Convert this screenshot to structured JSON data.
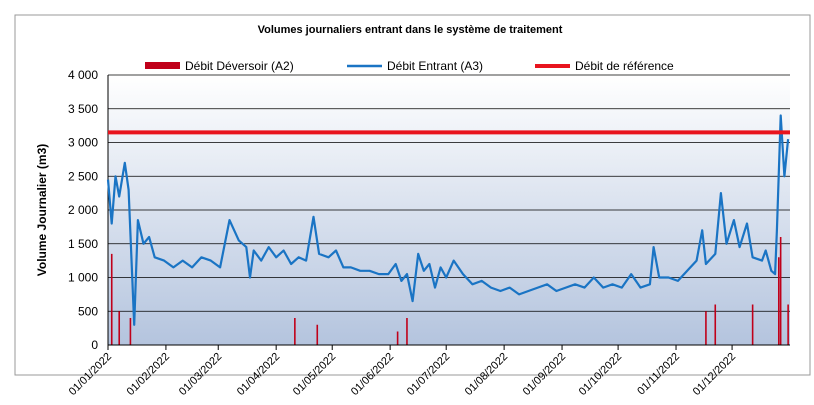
{
  "chart_data": {
    "type": "line",
    "title": "Volumes journaliers entrant dans le système de traitement",
    "y_label": "Volume Journalier (m3)",
    "xlim": [
      "2022-01-01",
      "2023-01-01"
    ],
    "xticks": [
      {
        "value": "2022-01-01",
        "label": "01/01/2022"
      },
      {
        "value": "2022-02-01",
        "label": "01/02/2022"
      },
      {
        "value": "2022-03-01",
        "label": "01/03/2022"
      },
      {
        "value": "2022-04-01",
        "label": "01/04/2022"
      },
      {
        "value": "2022-05-01",
        "label": "01/05/2022"
      },
      {
        "value": "2022-06-01",
        "label": "01/06/2022"
      },
      {
        "value": "2022-07-01",
        "label": "01/07/2022"
      },
      {
        "value": "2022-08-01",
        "label": "01/08/2022"
      },
      {
        "value": "2022-09-01",
        "label": "01/09/2022"
      },
      {
        "value": "2022-10-01",
        "label": "01/10/2022"
      },
      {
        "value": "2022-11-01",
        "label": "01/11/2022"
      },
      {
        "value": "2022-12-01",
        "label": "01/12/2022"
      }
    ],
    "ylim": [
      0,
      4000
    ],
    "yticks": [
      0,
      500,
      {
        "value": 1000,
        "label": "1 000"
      },
      {
        "value": 1500,
        "label": "1 500"
      },
      {
        "value": 2000,
        "label": "2 000"
      },
      {
        "value": 2500,
        "label": "2 500"
      },
      {
        "value": 3000,
        "label": "3 000"
      },
      {
        "value": 3500,
        "label": "3 500"
      },
      {
        "value": 4000,
        "label": "4 000"
      }
    ],
    "grid": true,
    "series": [
      {
        "name": "Débit Déversoir (A2)",
        "kind": "bar",
        "color": "#c0001a",
        "x": [
          "2022-01-03",
          "2022-01-07",
          "2022-01-13",
          "2022-04-11",
          "2022-04-23",
          "2022-06-05",
          "2022-06-10",
          "2022-11-17",
          "2022-11-22",
          "2022-12-12",
          "2022-12-26",
          "2022-12-27",
          "2022-12-31"
        ],
        "values": [
          1350,
          500,
          400,
          400,
          300,
          200,
          400,
          500,
          600,
          600,
          1300,
          1600,
          600
        ]
      },
      {
        "name": "Débit Entrant (A3)",
        "kind": "line",
        "color": "#1a74c4",
        "x": [
          "2022-01-01",
          "2022-01-03",
          "2022-01-05",
          "2022-01-07",
          "2022-01-10",
          "2022-01-12",
          "2022-01-15",
          "2022-01-17",
          "2022-01-20",
          "2022-01-23",
          "2022-01-26",
          "2022-01-31",
          "2022-02-05",
          "2022-02-10",
          "2022-02-15",
          "2022-02-20",
          "2022-02-25",
          "2022-03-02",
          "2022-03-07",
          "2022-03-12",
          "2022-03-16",
          "2022-03-18",
          "2022-03-20",
          "2022-03-24",
          "2022-03-28",
          "2022-04-01",
          "2022-04-05",
          "2022-04-09",
          "2022-04-13",
          "2022-04-17",
          "2022-04-21",
          "2022-04-24",
          "2022-04-29",
          "2022-05-03",
          "2022-05-07",
          "2022-05-11",
          "2022-05-16",
          "2022-05-21",
          "2022-05-26",
          "2022-05-31",
          "2022-06-04",
          "2022-06-07",
          "2022-06-10",
          "2022-06-13",
          "2022-06-16",
          "2022-06-19",
          "2022-06-22",
          "2022-06-25",
          "2022-06-28",
          "2022-07-01",
          "2022-07-05",
          "2022-07-10",
          "2022-07-15",
          "2022-07-20",
          "2022-07-25",
          "2022-07-30",
          "2022-08-04",
          "2022-08-09",
          "2022-08-14",
          "2022-08-19",
          "2022-08-24",
          "2022-08-29",
          "2022-09-03",
          "2022-09-08",
          "2022-09-13",
          "2022-09-18",
          "2022-09-23",
          "2022-09-28",
          "2022-10-03",
          "2022-10-08",
          "2022-10-13",
          "2022-10-18",
          "2022-10-20",
          "2022-10-23",
          "2022-10-28",
          "2022-11-02",
          "2022-11-07",
          "2022-11-12",
          "2022-11-15",
          "2022-11-17",
          "2022-11-22",
          "2022-11-25",
          "2022-11-28",
          "2022-12-02",
          "2022-12-05",
          "2022-12-09",
          "2022-12-12",
          "2022-12-17",
          "2022-12-19",
          "2022-12-22",
          "2022-12-24",
          "2022-12-25",
          "2022-12-27",
          "2022-12-29",
          "2022-12-31"
        ],
        "values": [
          2450,
          1800,
          2500,
          2200,
          2700,
          2300,
          300,
          1850,
          1500,
          1600,
          1300,
          1250,
          1150,
          1250,
          1150,
          1300,
          1250,
          1150,
          1850,
          1550,
          1450,
          1000,
          1400,
          1250,
          1450,
          1300,
          1400,
          1200,
          1300,
          1250,
          1900,
          1350,
          1300,
          1400,
          1150,
          1150,
          1100,
          1100,
          1050,
          1050,
          1200,
          950,
          1050,
          650,
          1350,
          1100,
          1200,
          850,
          1150,
          1000,
          1250,
          1050,
          900,
          950,
          850,
          800,
          850,
          750,
          800,
          850,
          900,
          800,
          850,
          900,
          850,
          1000,
          850,
          900,
          850,
          1050,
          850,
          900,
          1450,
          1000,
          1000,
          950,
          1100,
          1250,
          1700,
          1200,
          1350,
          2250,
          1500,
          1850,
          1450,
          1800,
          1300,
          1250,
          1400,
          1100,
          1050,
          1700,
          3400,
          2500,
          3050
        ]
      },
      {
        "name": "Débit de référence",
        "kind": "hline",
        "color": "#e8141e",
        "values": [
          3150
        ]
      }
    ]
  }
}
